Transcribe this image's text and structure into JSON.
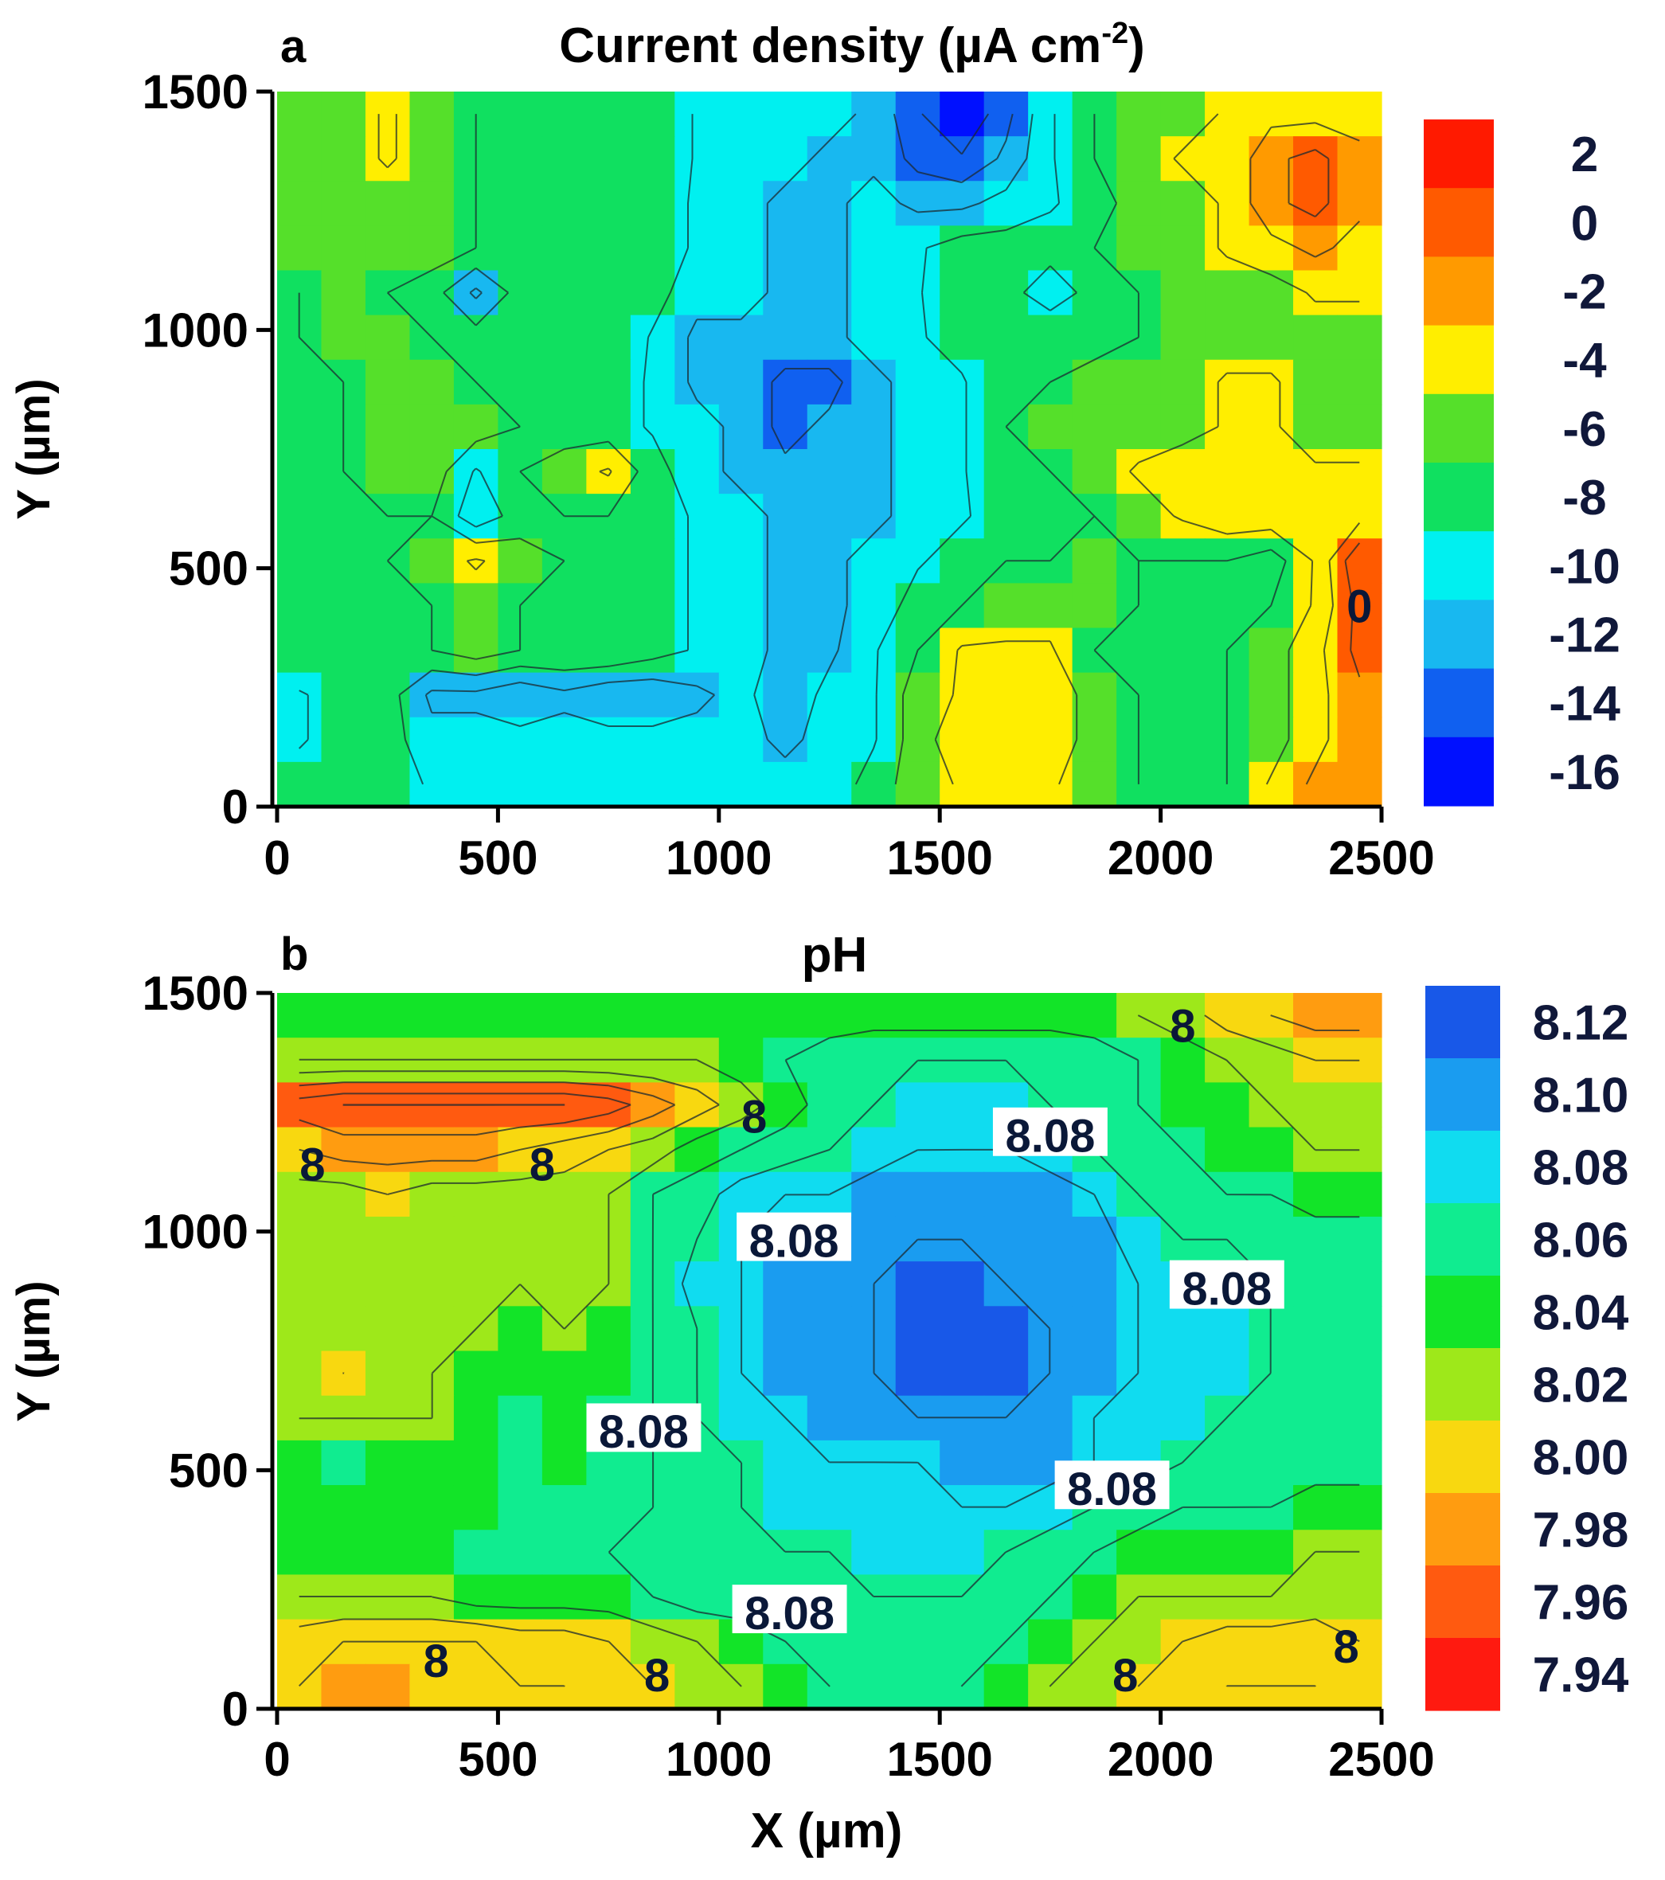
{
  "chart_data": [
    {
      "panel_label": "a",
      "type": "heatmap",
      "title": "Current density (µA cm",
      "title_superscript": "-2",
      "title_close": ")",
      "ylabel": "Y (µm)",
      "xlabel": "",
      "xlim": [
        0,
        2500
      ],
      "ylim": [
        0,
        1500
      ],
      "x_ticks": [
        "0",
        "500",
        "1000",
        "1500",
        "2000",
        "2500"
      ],
      "y_ticks": [
        "0",
        "500",
        "1000",
        "1500"
      ],
      "colorbar": {
        "labels": [
          "2",
          "0",
          "-2",
          "-4",
          "-6",
          "-8",
          "-10",
          "-12",
          "-14",
          "-16"
        ],
        "colors": [
          "#ff1a00",
          "#ff5a00",
          "#ff9a00",
          "#ffee00",
          "#55e02a",
          "#10e060",
          "#00f0f0",
          "#18b8f0",
          "#1060f0",
          "#0010ff"
        ]
      },
      "value_range": [
        -16,
        2
      ],
      "grid": [
        [
          -6,
          -6,
          -5,
          -6,
          -7,
          -7,
          -8,
          -7,
          -7,
          -9,
          -10,
          -10,
          -10,
          -11,
          -14,
          -16,
          -13,
          -9,
          -7,
          -6,
          -6,
          -5,
          -4,
          -4,
          -4
        ],
        [
          -6,
          -6,
          -5,
          -6,
          -7,
          -7,
          -7,
          -7,
          -7,
          -9,
          -10,
          -10,
          -11,
          -11,
          -13,
          -14,
          -12,
          -9,
          -7,
          -6,
          -5,
          -5,
          -2,
          -1,
          -3
        ],
        [
          -6,
          -6,
          -6,
          -6,
          -7,
          -7,
          -7,
          -7,
          -8,
          -9,
          -10,
          -11,
          -11,
          -10,
          -11,
          -11,
          -10,
          -9,
          -8,
          -6,
          -6,
          -5,
          -2,
          -1,
          -3
        ],
        [
          -6,
          -6,
          -6,
          -6,
          -7,
          -7,
          -8,
          -8,
          -8,
          -9,
          -10,
          -11,
          -11,
          -10,
          -9,
          -8,
          -8,
          -8,
          -7,
          -6,
          -6,
          -5,
          -4,
          -3,
          -4
        ],
        [
          -7,
          -6,
          -7,
          -8,
          -11,
          -8,
          -8,
          -8,
          -8,
          -10,
          -10,
          -11,
          -11,
          -10,
          -9,
          -7,
          -8,
          -10,
          -8,
          -7,
          -6,
          -6,
          -6,
          -5,
          -5
        ],
        [
          -7,
          -6,
          -6,
          -7,
          -8,
          -7,
          -8,
          -7,
          -9,
          -11,
          -11,
          -11,
          -11,
          -10,
          -9,
          -8,
          -7,
          -7,
          -8,
          -7,
          -6,
          -6,
          -6,
          -6,
          -6
        ],
        [
          -7,
          -7,
          -6,
          -6,
          -7,
          -7,
          -8,
          -8,
          -9,
          -11,
          -11,
          -13,
          -13,
          -11,
          -10,
          -9,
          -7,
          -7,
          -6,
          -6,
          -6,
          -5,
          -5,
          -6,
          -6
        ],
        [
          -7,
          -7,
          -6,
          -6,
          -6,
          -7,
          -8,
          -8,
          -9,
          -10,
          -11,
          -13,
          -12,
          -11,
          -10,
          -9,
          -7,
          -6,
          -6,
          -6,
          -6,
          -5,
          -5,
          -6,
          -6
        ],
        [
          -7,
          -7,
          -6,
          -6,
          -9,
          -7,
          -6,
          -5,
          -8,
          -10,
          -11,
          -12,
          -11,
          -11,
          -10,
          -9,
          -7,
          -7,
          -6,
          -5,
          -4,
          -4,
          -4,
          -5,
          -5
        ],
        [
          -7,
          -7,
          -7,
          -7,
          -10,
          -8,
          -7,
          -7,
          -8,
          -9,
          -10,
          -11,
          -11,
          -11,
          -10,
          -9,
          -8,
          -7,
          -7,
          -6,
          -5,
          -4,
          -4,
          -5,
          -4
        ],
        [
          -7,
          -7,
          -7,
          -6,
          -5,
          -6,
          -7,
          -7,
          -8,
          -9,
          -10,
          -11,
          -11,
          -10,
          -9,
          -8,
          -7,
          -7,
          -6,
          -7,
          -7,
          -7,
          -8,
          -5,
          0
        ],
        [
          -7,
          -7,
          -7,
          -7,
          -6,
          -7,
          -7,
          -7,
          -8,
          -9,
          -10,
          -11,
          -11,
          -10,
          -8,
          -7,
          -6,
          -6,
          -6,
          -7,
          -7,
          -7,
          -7,
          -5,
          -1
        ],
        [
          -7,
          -7,
          -7,
          -7,
          -6,
          -7,
          -7,
          -7,
          -8,
          -9,
          -10,
          -11,
          -11,
          -9,
          -7,
          -5,
          -5,
          -5,
          -7,
          -7,
          -7,
          -7,
          -6,
          -4,
          -1
        ],
        [
          -9,
          -8,
          -8,
          -11,
          -11,
          -12,
          -11,
          -12,
          -12,
          -11,
          -10,
          -12,
          -10,
          -9,
          -6,
          -5,
          -4,
          -4,
          -6,
          -7,
          -7,
          -7,
          -6,
          -4,
          -2
        ],
        [
          -9,
          -8,
          -8,
          -10,
          -10,
          -10,
          -10,
          -10,
          -10,
          -10,
          -10,
          -11,
          -10,
          -9,
          -6,
          -4,
          -4,
          -4,
          -6,
          -7,
          -7,
          -7,
          -6,
          -4,
          -2
        ],
        [
          -8,
          -8,
          -8,
          -9,
          -9,
          -9,
          -9,
          -9,
          -9,
          -9,
          -10,
          -10,
          -10,
          -8,
          -6,
          -5,
          -5,
          -5,
          -6,
          -7,
          -7,
          -7,
          -5,
          -3,
          -3
        ]
      ],
      "contour_labels": [
        {
          "text": "0",
          "x": 2450,
          "y": 420
        }
      ]
    },
    {
      "panel_label": "b",
      "type": "heatmap",
      "title": "pH",
      "ylabel": "Y (µm)",
      "xlabel": "X (µm)",
      "xlim": [
        0,
        2500
      ],
      "ylim": [
        0,
        1500
      ],
      "x_ticks": [
        "0",
        "500",
        "1000",
        "1500",
        "2000",
        "2500"
      ],
      "y_ticks": [
        "0",
        "500",
        "1000",
        "1500"
      ],
      "colorbar": {
        "labels": [
          "8.12",
          "8.10",
          "8.08",
          "8.06",
          "8.04",
          "8.02",
          "8.00",
          "7.98",
          "7.96",
          "7.94"
        ],
        "colors": [
          "#1858e8",
          "#1a9cf0",
          "#10dcf0",
          "#10ec90",
          "#12e428",
          "#9ee81a",
          "#f8d810",
          "#ff9c10",
          "#ff5a10",
          "#ff1a10"
        ]
      },
      "value_range": [
        7.93,
        8.13
      ],
      "grid": [
        [
          8.04,
          8.04,
          8.04,
          8.04,
          8.04,
          8.04,
          8.04,
          8.04,
          8.04,
          8.04,
          8.04,
          8.04,
          8.04,
          8.04,
          8.04,
          8.04,
          8.04,
          8.04,
          8.04,
          8.03,
          8.02,
          8.0,
          7.99,
          7.98,
          7.98
        ],
        [
          8.03,
          8.03,
          8.03,
          8.03,
          8.03,
          8.03,
          8.03,
          8.03,
          8.03,
          8.03,
          8.04,
          8.05,
          8.06,
          8.07,
          8.07,
          8.07,
          8.07,
          8.07,
          8.06,
          8.05,
          8.04,
          8.03,
          8.02,
          8.01,
          8.01
        ],
        [
          7.96,
          7.95,
          7.95,
          7.95,
          7.95,
          7.95,
          7.95,
          7.96,
          7.98,
          8.0,
          8.02,
          8.04,
          8.06,
          8.07,
          8.08,
          8.08,
          8.08,
          8.07,
          8.06,
          8.05,
          8.04,
          8.04,
          8.03,
          8.03,
          8.02
        ],
        [
          7.99,
          7.98,
          7.98,
          7.98,
          7.98,
          7.99,
          8.0,
          8.01,
          8.02,
          8.04,
          8.05,
          8.06,
          8.07,
          8.08,
          8.09,
          8.09,
          8.09,
          8.08,
          8.07,
          8.06,
          8.05,
          8.04,
          8.04,
          8.03,
          8.03
        ],
        [
          8.02,
          8.02,
          8.01,
          8.02,
          8.02,
          8.02,
          8.02,
          8.03,
          8.05,
          8.06,
          8.08,
          8.09,
          8.09,
          8.1,
          8.1,
          8.11,
          8.11,
          8.1,
          8.09,
          8.07,
          8.06,
          8.05,
          8.05,
          8.04,
          8.04
        ],
        [
          8.03,
          8.03,
          8.02,
          8.03,
          8.03,
          8.03,
          8.02,
          8.03,
          8.05,
          8.07,
          8.09,
          8.1,
          8.1,
          8.1,
          8.11,
          8.11,
          8.11,
          8.11,
          8.1,
          8.08,
          8.07,
          8.07,
          8.06,
          8.06,
          8.06
        ],
        [
          8.03,
          8.03,
          8.03,
          8.03,
          8.03,
          8.03,
          8.02,
          8.03,
          8.05,
          8.08,
          8.09,
          8.1,
          8.1,
          8.11,
          8.12,
          8.12,
          8.11,
          8.11,
          8.1,
          8.09,
          8.08,
          8.08,
          8.07,
          8.07,
          8.07
        ],
        [
          8.03,
          8.02,
          8.03,
          8.03,
          8.03,
          8.04,
          8.03,
          8.04,
          8.05,
          8.07,
          8.09,
          8.1,
          8.1,
          8.11,
          8.12,
          8.12,
          8.12,
          8.11,
          8.1,
          8.09,
          8.08,
          8.08,
          8.07,
          8.07,
          8.07
        ],
        [
          8.03,
          8.01,
          8.02,
          8.03,
          8.04,
          8.04,
          8.04,
          8.04,
          8.05,
          8.07,
          8.09,
          8.1,
          8.1,
          8.11,
          8.12,
          8.12,
          8.12,
          8.11,
          8.1,
          8.09,
          8.08,
          8.08,
          8.07,
          8.07,
          8.07
        ],
        [
          8.03,
          8.03,
          8.03,
          8.03,
          8.04,
          8.05,
          8.04,
          8.05,
          8.05,
          8.07,
          8.08,
          8.09,
          8.1,
          8.1,
          8.11,
          8.11,
          8.11,
          8.1,
          8.09,
          8.08,
          8.08,
          8.07,
          8.07,
          8.07,
          8.07
        ],
        [
          8.04,
          8.05,
          8.04,
          8.04,
          8.04,
          8.05,
          8.04,
          8.05,
          8.05,
          8.06,
          8.07,
          8.08,
          8.09,
          8.09,
          8.09,
          8.1,
          8.1,
          8.1,
          8.09,
          8.08,
          8.07,
          8.07,
          8.06,
          8.06,
          8.06
        ],
        [
          8.04,
          8.04,
          8.04,
          8.04,
          8.04,
          8.05,
          8.05,
          8.05,
          8.05,
          8.06,
          8.07,
          8.08,
          8.08,
          8.08,
          8.08,
          8.09,
          8.09,
          8.08,
          8.07,
          8.06,
          8.05,
          8.05,
          8.05,
          8.04,
          8.04
        ],
        [
          8.04,
          8.04,
          8.04,
          8.04,
          8.05,
          8.05,
          8.05,
          8.05,
          8.06,
          8.06,
          8.07,
          8.07,
          8.07,
          8.08,
          8.08,
          8.08,
          8.07,
          8.06,
          8.05,
          8.04,
          8.04,
          8.04,
          8.04,
          8.03,
          8.03
        ],
        [
          8.03,
          8.03,
          8.03,
          8.03,
          8.04,
          8.04,
          8.04,
          8.04,
          8.05,
          8.06,
          8.06,
          8.06,
          8.07,
          8.07,
          8.07,
          8.07,
          8.06,
          8.05,
          8.04,
          8.03,
          8.03,
          8.03,
          8.03,
          8.02,
          8.02
        ],
        [
          8.0,
          7.99,
          7.99,
          7.99,
          7.99,
          8.0,
          8.0,
          8.01,
          8.02,
          8.03,
          8.04,
          8.05,
          8.06,
          8.07,
          8.07,
          8.06,
          8.05,
          8.04,
          8.03,
          8.02,
          8.01,
          8.0,
          8.0,
          8.0,
          8.01
        ],
        [
          7.99,
          7.98,
          7.98,
          7.99,
          7.99,
          7.99,
          7.99,
          8.0,
          8.01,
          8.02,
          8.03,
          8.04,
          8.05,
          8.06,
          8.06,
          8.05,
          8.04,
          8.03,
          8.02,
          8.01,
          8.0,
          7.99,
          7.99,
          7.99,
          8.0
        ]
      ],
      "contour_labels": [
        {
          "text": "8",
          "x": 2050,
          "y": 1430
        },
        {
          "text": "8",
          "x": 1080,
          "y": 1240
        },
        {
          "text": "8",
          "x": 80,
          "y": 1140
        },
        {
          "text": "8",
          "x": 600,
          "y": 1140
        },
        {
          "text": "8.08",
          "x": 1750,
          "y": 1200
        },
        {
          "text": "8.08",
          "x": 1170,
          "y": 980
        },
        {
          "text": "8.08",
          "x": 2150,
          "y": 880
        },
        {
          "text": "8.08",
          "x": 830,
          "y": 580
        },
        {
          "text": "8.08",
          "x": 1890,
          "y": 460
        },
        {
          "text": "8.08",
          "x": 1160,
          "y": 200
        },
        {
          "text": "8",
          "x": 360,
          "y": 100
        },
        {
          "text": "8",
          "x": 860,
          "y": 70
        },
        {
          "text": "8",
          "x": 1920,
          "y": 70
        },
        {
          "text": "8",
          "x": 2420,
          "y": 130
        }
      ]
    }
  ]
}
